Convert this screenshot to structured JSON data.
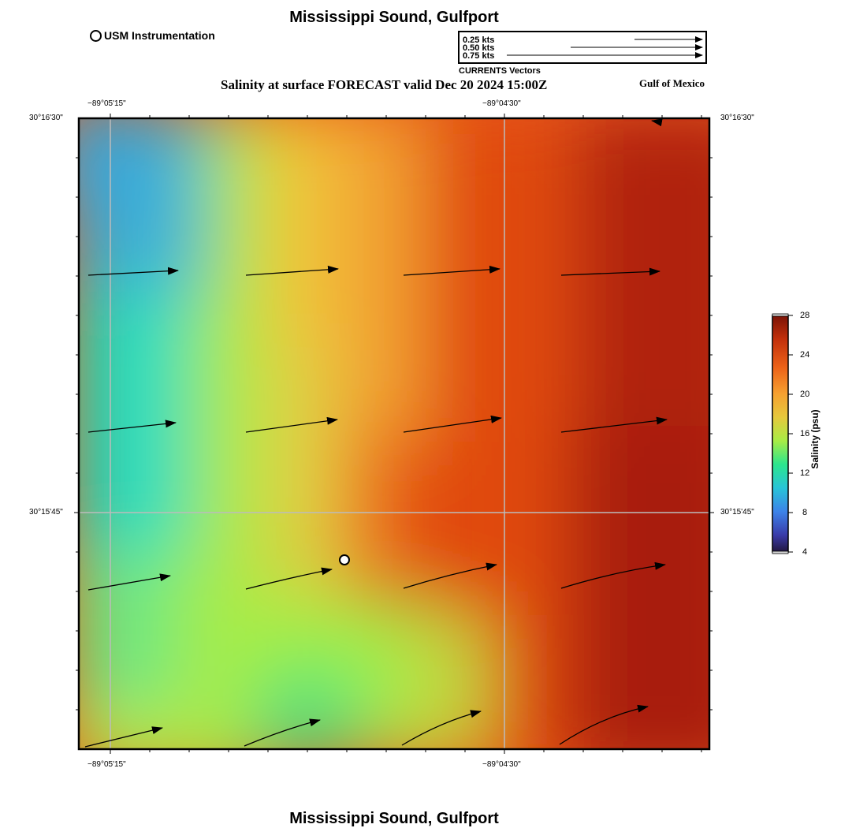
{
  "header": {
    "title": "Mississippi Sound, Gulfport",
    "subtitle": "Salinity at surface FORECAST valid Dec 20 2024 15:00Z",
    "region_label": "Gulf of Mexico",
    "footer_title": "Mississippi Sound, Gulfport"
  },
  "legend": {
    "station_label": "USM Instrumentation",
    "vector_labels": [
      "0.25 kts",
      "0.50 kts",
      "0.75 kts"
    ],
    "vector_speeds_kts": [
      0.25,
      0.5,
      0.75
    ],
    "vector_caption": "CURRENTS Vectors"
  },
  "axes": {
    "lon_top": [
      "−89°05'15\"",
      "−89°04'30\""
    ],
    "lon_bottom": [
      "−89°05'15\"",
      "−89°04'30\""
    ],
    "lat_left": [
      "30°16'30\"",
      "30°15'45\""
    ],
    "lat_right": [
      "30°16'30\"",
      "30°15'45\""
    ]
  },
  "colorbar": {
    "title": "Salinity (psu)",
    "ticks": [
      "28",
      "24",
      "20",
      "16",
      "12",
      "8",
      "4"
    ],
    "min": 4,
    "max": 28
  },
  "colors": {
    "low": "#2a1b4e",
    "blue": "#3aa3dc",
    "cyan": "#1fdcc0",
    "green": "#9ef048",
    "yellow": "#e4c83c",
    "orange": "#f6a030",
    "red": "#e04a10",
    "dark_red": "#a81c08"
  }
}
